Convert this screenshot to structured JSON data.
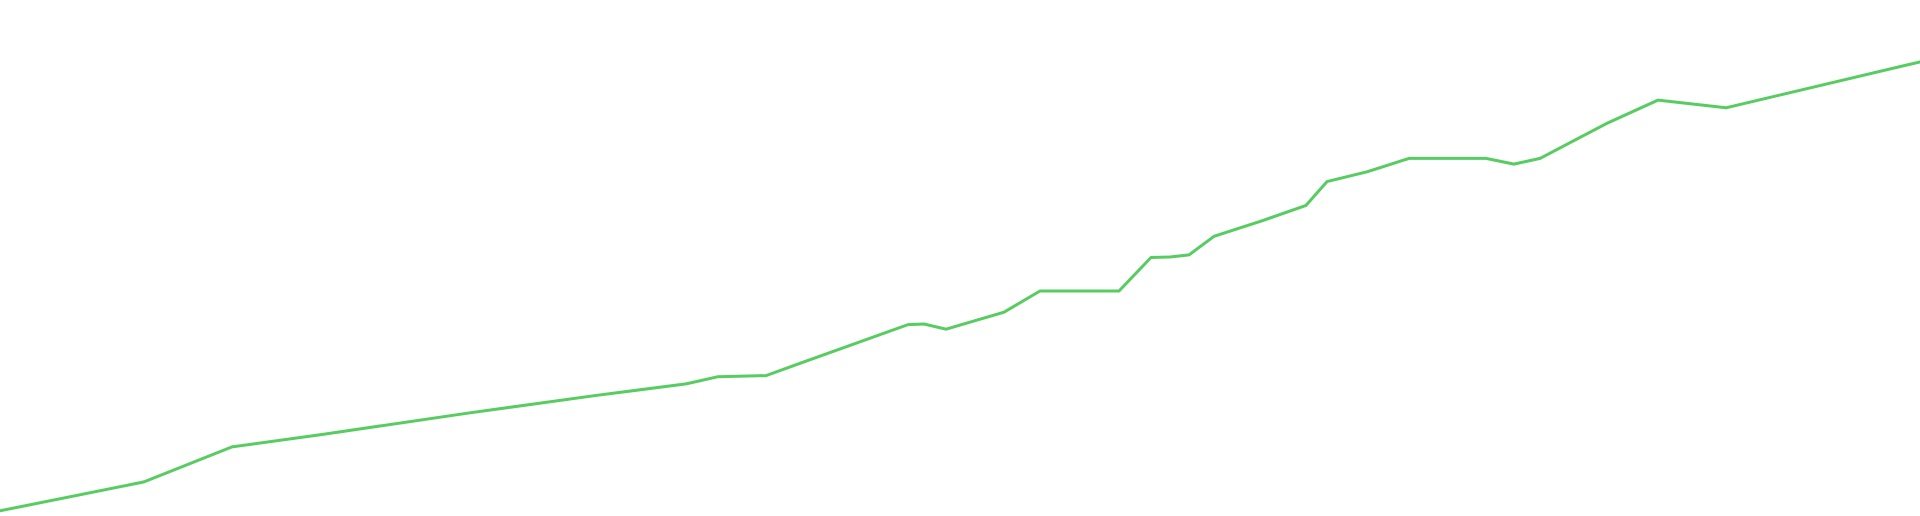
{
  "chart_data": {
    "type": "line",
    "title": "",
    "xlabel": "",
    "ylabel": "",
    "grid": false,
    "legend": "none",
    "xlim": [
      0,
      1920
    ],
    "ylim": [
      0,
      100
    ],
    "series": [
      {
        "color": "#57cc61",
        "points": [
          {
            "x": 0,
            "y": 1.0
          },
          {
            "x": 144,
            "y": 6.6
          },
          {
            "x": 232,
            "y": 13.4
          },
          {
            "x": 322,
            "y": 15.8
          },
          {
            "x": 470,
            "y": 20.0
          },
          {
            "x": 597,
            "y": 23.4
          },
          {
            "x": 686,
            "y": 25.6
          },
          {
            "x": 718,
            "y": 27.0
          },
          {
            "x": 766,
            "y": 27.2
          },
          {
            "x": 800,
            "y": 29.6
          },
          {
            "x": 908,
            "y": 37.1
          },
          {
            "x": 924,
            "y": 37.2
          },
          {
            "x": 946,
            "y": 36.2
          },
          {
            "x": 1004,
            "y": 39.5
          },
          {
            "x": 1040,
            "y": 43.6
          },
          {
            "x": 1119,
            "y": 43.6
          },
          {
            "x": 1151,
            "y": 50.1
          },
          {
            "x": 1170,
            "y": 50.2
          },
          {
            "x": 1189,
            "y": 50.6
          },
          {
            "x": 1214,
            "y": 54.2
          },
          {
            "x": 1262,
            "y": 57.2
          },
          {
            "x": 1306,
            "y": 60.2
          },
          {
            "x": 1327,
            "y": 64.8
          },
          {
            "x": 1367,
            "y": 66.7
          },
          {
            "x": 1409,
            "y": 69.3
          },
          {
            "x": 1486,
            "y": 69.3
          },
          {
            "x": 1514,
            "y": 68.2
          },
          {
            "x": 1540,
            "y": 69.3
          },
          {
            "x": 1606,
            "y": 76.0
          },
          {
            "x": 1658,
            "y": 80.6
          },
          {
            "x": 1726,
            "y": 79.1
          },
          {
            "x": 1920,
            "y": 88.0
          }
        ]
      }
    ]
  }
}
